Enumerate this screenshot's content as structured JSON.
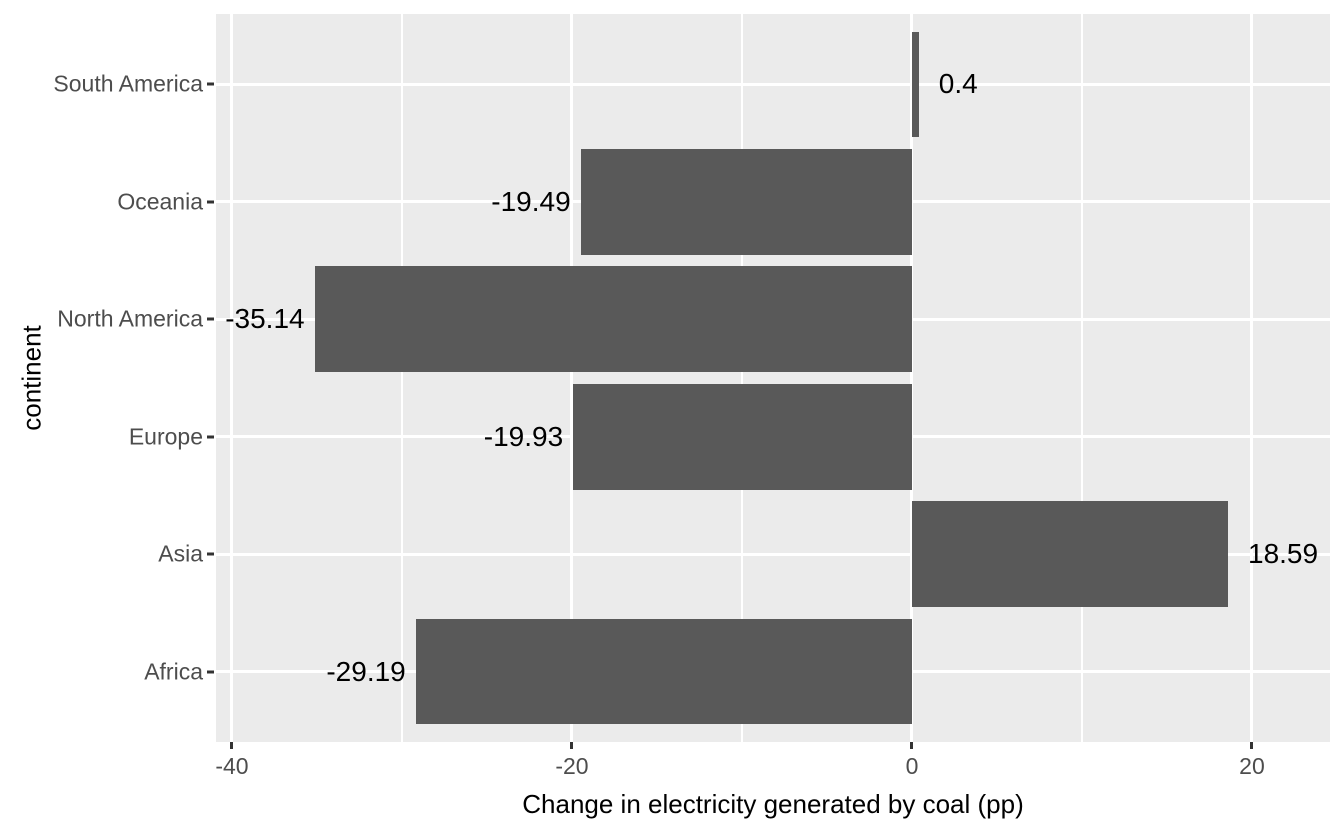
{
  "chart_data": {
    "type": "bar",
    "orientation": "horizontal",
    "xlabel": "Change in electricity generated by coal (pp)",
    "ylabel": "continent",
    "categories_top_to_bottom": [
      "South America",
      "Oceania",
      "North America",
      "Europe",
      "Asia",
      "Africa"
    ],
    "values": [
      0.4,
      -19.49,
      -35.14,
      -19.93,
      18.59,
      -29.19
    ],
    "bar_labels": [
      "0.4",
      "-19.49",
      "-35.14",
      "-19.93",
      "18.59",
      "-29.19"
    ],
    "x_ticks": [
      -40,
      -20,
      0,
      20
    ],
    "x_tick_labels": [
      "-40",
      "-20",
      "0",
      "20"
    ],
    "x_minor_gridlines": [
      -30,
      -10,
      10
    ],
    "xlim": [
      -40.94,
      24.59
    ],
    "grid": true,
    "legend": false,
    "colors": {
      "bar_fill": "#595959",
      "panel_background": "#EBEBEB",
      "gridline": "#FFFFFF",
      "axis_text": "#4D4D4D",
      "axis_title": "#000000",
      "tick_mark": "#333333",
      "figure_background": "#FFFFFF"
    }
  }
}
